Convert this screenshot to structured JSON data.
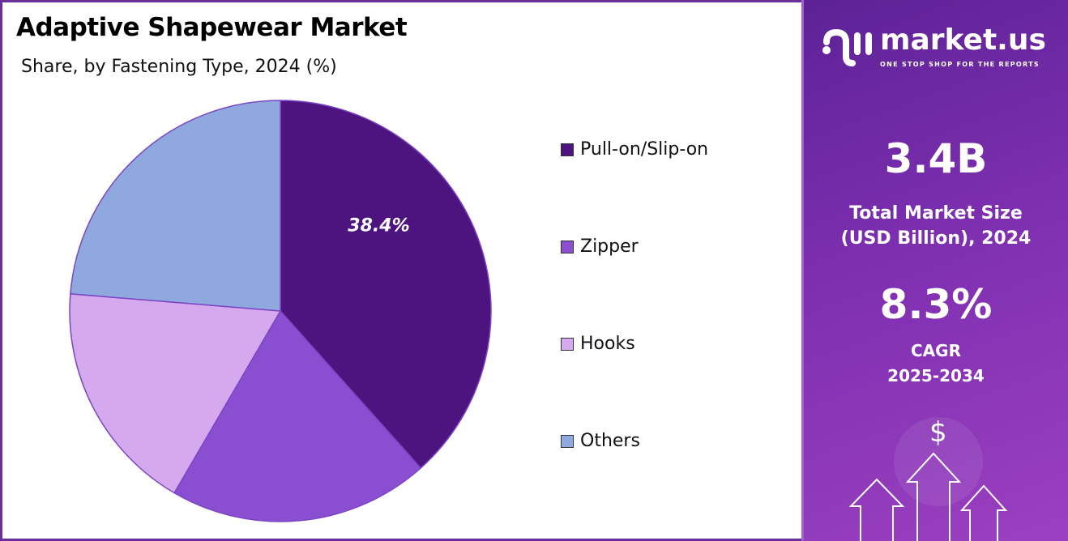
{
  "title": "Adaptive Shapewear Market",
  "subtitle": "Share, by Fastening Type, 2024 (%)",
  "chart_data": {
    "type": "pie",
    "title": "Adaptive Shapewear Market",
    "subtitle": "Share, by Fastening Type, 2024 (%)",
    "categories": [
      "Pull-on/Slip-on",
      "Zipper",
      "Hooks",
      "Others"
    ],
    "values": [
      38.4,
      20.0,
      17.9,
      23.7
    ],
    "colors": [
      "#4d1480",
      "#8a4fd0",
      "#d4a9ee",
      "#8fa9de"
    ],
    "data_labels": [
      "38.4%",
      "",
      "",
      ""
    ],
    "legend_placement": "right",
    "start_angle": "top, clockwise"
  },
  "panel": {
    "logo_name": "market.us",
    "logo_tagline": "ONE STOP SHOP FOR THE REPORTS",
    "market_size": "3.4B",
    "market_size_label_1": "Total Market Size",
    "market_size_label_2": "(USD Billion), 2024",
    "cagr": "8.3%",
    "cagr_label_1": "CAGR",
    "cagr_label_2": "2025-2034",
    "decor_symbol": "$"
  }
}
